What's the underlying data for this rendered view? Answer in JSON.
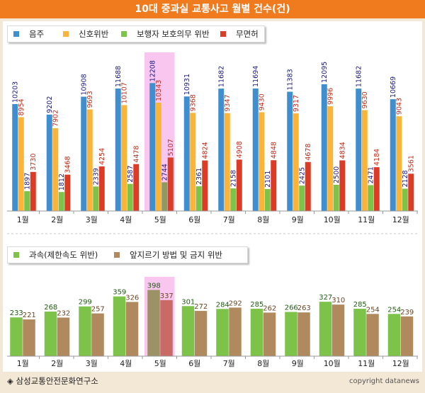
{
  "title": "10대 중과실 교통사고 월별 건수(건)",
  "source": "◈ 삼성교통안전문화연구소",
  "copyright": "copyright datanews",
  "colors": {
    "blue": "#3f8fd0",
    "orange": "#fbb43a",
    "green": "#7dc249",
    "red": "#dc3b25",
    "brown": "#b0895e",
    "highlight": "#f9c6f0"
  },
  "chart_data": [
    {
      "type": "bar",
      "categories": [
        "1월",
        "2월",
        "3월",
        "4월",
        "5월",
        "6월",
        "7월",
        "8월",
        "9월",
        "10월",
        "11월",
        "12월"
      ],
      "highlight_category": "5월",
      "series": [
        {
          "name": "음주",
          "values": [
            10203,
            9202,
            10908,
            11688,
            12208,
            10931,
            11682,
            11694,
            11383,
            12095,
            11682,
            10669
          ]
        },
        {
          "name": "신호위반",
          "values": [
            8954,
            7902,
            9693,
            10107,
            10343,
            9368,
            9347,
            9430,
            9317,
            9996,
            9630,
            9043
          ]
        },
        {
          "name": "보행자 보호의무 위반",
          "values": [
            1897,
            1812,
            2339,
            2587,
            2744,
            2361,
            2158,
            2101,
            2425,
            2500,
            2471,
            2128
          ]
        },
        {
          "name": "무면허",
          "values": [
            3730,
            3468,
            4254,
            4478,
            5107,
            4824,
            4908,
            4848,
            4678,
            4834,
            4184,
            3561
          ]
        }
      ]
    },
    {
      "type": "bar",
      "categories": [
        "1월",
        "2월",
        "3월",
        "4월",
        "5월",
        "6월",
        "7월",
        "8월",
        "9월",
        "10월",
        "11월",
        "12월"
      ],
      "highlight_category": "5월",
      "series": [
        {
          "name": "과속(제한속도 위반)",
          "values": [
            233,
            268,
            299,
            359,
            398,
            301,
            284,
            285,
            266,
            327,
            285,
            254
          ]
        },
        {
          "name": "앞지르기 방법 및 금지 위반",
          "values": [
            221,
            232,
            257,
            326,
            337,
            272,
            292,
            262,
            263,
            310,
            254,
            239
          ]
        }
      ]
    }
  ]
}
